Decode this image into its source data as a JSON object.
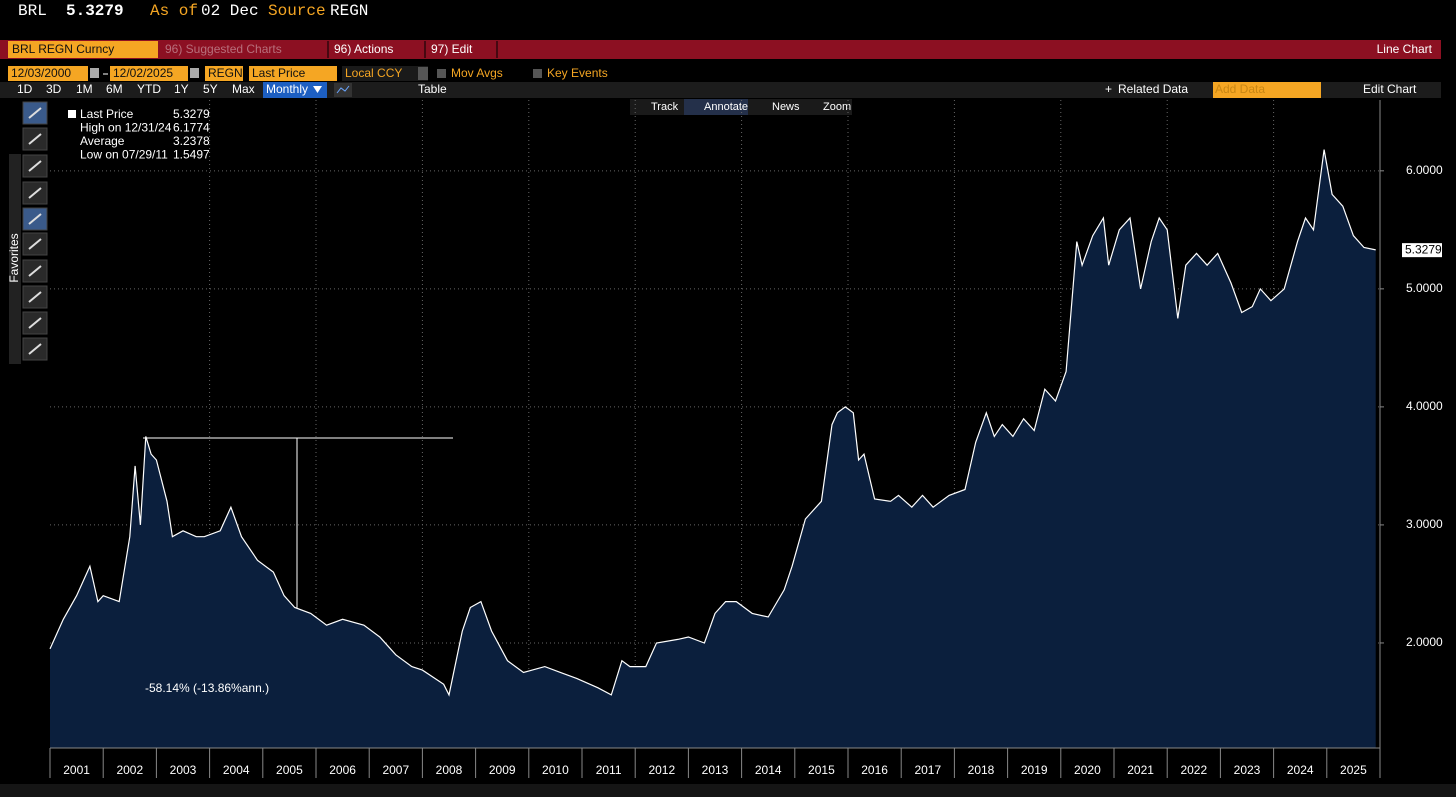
{
  "header": {
    "ticker": "BRL",
    "price": "5.3279",
    "as_of_label": "As of",
    "date": "02 Dec",
    "source_label": "Source",
    "source": "REGN"
  },
  "toolbar": {
    "security": "BRL REGN Curncy",
    "suggested": "96) Suggested Charts",
    "actions": "96) Actions",
    "edit": "97) Edit",
    "chart_type": "Line Chart"
  },
  "controls": {
    "start": "12/03/2000",
    "end": "12/02/2025",
    "source": "REGN",
    "field": "Last Price",
    "currency": "Local CCY",
    "mov_avgs": "Mov Avgs",
    "key_events": "Key Events"
  },
  "periods": [
    "1D",
    "3D",
    "1M",
    "6M",
    "YTD",
    "1Y",
    "5Y",
    "Max"
  ],
  "frequency": "Monthly",
  "table": "Table",
  "related_data": "Related Data",
  "add_data": "Add Data",
  "edit_chart": "Edit Chart",
  "chart_tools": [
    "Track",
    "Annotate",
    "News",
    "Zoom"
  ],
  "sidebar_label": "Favorites",
  "chart_data": {
    "type": "area",
    "x": [
      2001.0,
      2001.25,
      2001.5,
      2001.75,
      2001.9,
      2002.0,
      2002.3,
      2002.5,
      2002.6,
      2002.7,
      2002.8,
      2002.9,
      2003.0,
      2003.2,
      2003.3,
      2003.5,
      2003.75,
      2003.9,
      2004.2,
      2004.4,
      2004.6,
      2004.9,
      2005.2,
      2005.4,
      2005.6,
      2005.9,
      2006.2,
      2006.5,
      2006.9,
      2007.2,
      2007.5,
      2007.8,
      2008.0,
      2008.4,
      2008.5,
      2008.75,
      2008.9,
      2009.1,
      2009.3,
      2009.6,
      2009.9,
      2010.3,
      2010.6,
      2010.9,
      2011.3,
      2011.55,
      2011.75,
      2011.9,
      2012.2,
      2012.4,
      2012.8,
      2013.0,
      2013.3,
      2013.5,
      2013.7,
      2013.9,
      2014.2,
      2014.5,
      2014.8,
      2014.95,
      2015.2,
      2015.5,
      2015.7,
      2015.8,
      2015.95,
      2016.1,
      2016.2,
      2016.3,
      2016.5,
      2016.8,
      2016.95,
      2017.2,
      2017.4,
      2017.6,
      2017.9,
      2018.2,
      2018.4,
      2018.6,
      2018.75,
      2018.9,
      2019.1,
      2019.3,
      2019.5,
      2019.7,
      2019.9,
      2020.1,
      2020.3,
      2020.4,
      2020.6,
      2020.8,
      2020.9,
      2021.1,
      2021.3,
      2021.5,
      2021.7,
      2021.85,
      2022.0,
      2022.2,
      2022.35,
      2022.55,
      2022.75,
      2022.95,
      2023.2,
      2023.4,
      2023.6,
      2023.75,
      2023.95,
      2024.2,
      2024.45,
      2024.6,
      2024.75,
      2024.95,
      2025.1,
      2025.3,
      2025.5,
      2025.7,
      2025.92
    ],
    "series": [
      {
        "name": "Last Price",
        "color": "#ffffff",
        "fill": "#0b1f3d",
        "values": [
          1.95,
          2.2,
          2.4,
          2.65,
          2.35,
          2.4,
          2.35,
          2.9,
          3.5,
          3.0,
          3.75,
          3.6,
          3.55,
          3.2,
          2.9,
          2.95,
          2.9,
          2.9,
          2.95,
          3.15,
          2.9,
          2.7,
          2.6,
          2.4,
          2.3,
          2.25,
          2.15,
          2.2,
          2.15,
          2.05,
          1.9,
          1.8,
          1.77,
          1.65,
          1.56,
          2.1,
          2.3,
          2.35,
          2.1,
          1.85,
          1.75,
          1.8,
          1.75,
          1.7,
          1.62,
          1.56,
          1.85,
          1.8,
          1.8,
          2.0,
          2.03,
          2.05,
          2.0,
          2.25,
          2.35,
          2.35,
          2.25,
          2.22,
          2.45,
          2.65,
          3.05,
          3.2,
          3.85,
          3.95,
          4.0,
          3.95,
          3.55,
          3.6,
          3.22,
          3.2,
          3.25,
          3.15,
          3.25,
          3.15,
          3.25,
          3.3,
          3.7,
          3.95,
          3.75,
          3.85,
          3.75,
          3.9,
          3.8,
          4.15,
          4.05,
          4.3,
          5.4,
          5.2,
          5.45,
          5.6,
          5.2,
          5.5,
          5.6,
          5.0,
          5.4,
          5.6,
          5.5,
          4.75,
          5.2,
          5.3,
          5.2,
          5.3,
          5.05,
          4.8,
          4.85,
          5.0,
          4.9,
          5.0,
          5.4,
          5.6,
          5.5,
          6.18,
          5.8,
          5.7,
          5.45,
          5.35,
          5.33
        ]
      }
    ],
    "xlim": [
      2001,
      2026
    ],
    "xticks": [
      {
        "value": 2001,
        "label": "2001"
      },
      {
        "value": 2002,
        "label": "2002"
      },
      {
        "value": 2003,
        "label": "2003"
      },
      {
        "value": 2004,
        "label": "2004"
      },
      {
        "value": 2005,
        "label": "2005"
      },
      {
        "value": 2006,
        "label": "2006"
      },
      {
        "value": 2007,
        "label": "2007"
      },
      {
        "value": 2008,
        "label": "2008"
      },
      {
        "value": 2009,
        "label": "2009"
      },
      {
        "value": 2010,
        "label": "2010"
      },
      {
        "value": 2011,
        "label": "2011"
      },
      {
        "value": 2012,
        "label": "2012"
      },
      {
        "value": 2013,
        "label": "2013"
      },
      {
        "value": 2014,
        "label": "2014"
      },
      {
        "value": 2015,
        "label": "2015"
      },
      {
        "value": 2016,
        "label": "2016"
      },
      {
        "value": 2017,
        "label": "2017"
      },
      {
        "value": 2018,
        "label": "2018"
      },
      {
        "value": 2019,
        "label": "2019"
      },
      {
        "value": 2020,
        "label": "2020"
      },
      {
        "value": 2021,
        "label": "2021"
      },
      {
        "value": 2022,
        "label": "2022"
      },
      {
        "value": 2023,
        "label": "2023"
      },
      {
        "value": 2024,
        "label": "2024"
      },
      {
        "value": 2025,
        "label": "2025"
      }
    ],
    "xgrid": [
      2004,
      2006,
      2008,
      2010,
      2012,
      2014,
      2016,
      2018,
      2020,
      2022,
      2024
    ],
    "ylim": [
      1.11,
      6.6
    ],
    "yticks": [
      {
        "value": 2,
        "label": "2.0000"
      },
      {
        "value": 3,
        "label": "3.0000"
      },
      {
        "value": 4,
        "label": "4.0000"
      },
      {
        "value": 5,
        "label": "5.0000"
      },
      {
        "value": 6,
        "label": "6.0000"
      }
    ],
    "grid": true,
    "last_value": 5.3279,
    "legend": [
      {
        "label": "Last Price",
        "value": 5.3279
      },
      {
        "label": "High on 12/31/24",
        "value": 6.1774
      },
      {
        "label": "Average",
        "value": 3.2378
      },
      {
        "label": "Low on 07/29/11",
        "value": 1.5497
      }
    ],
    "annotation": "-58.14% (-13.86%ann.)"
  }
}
